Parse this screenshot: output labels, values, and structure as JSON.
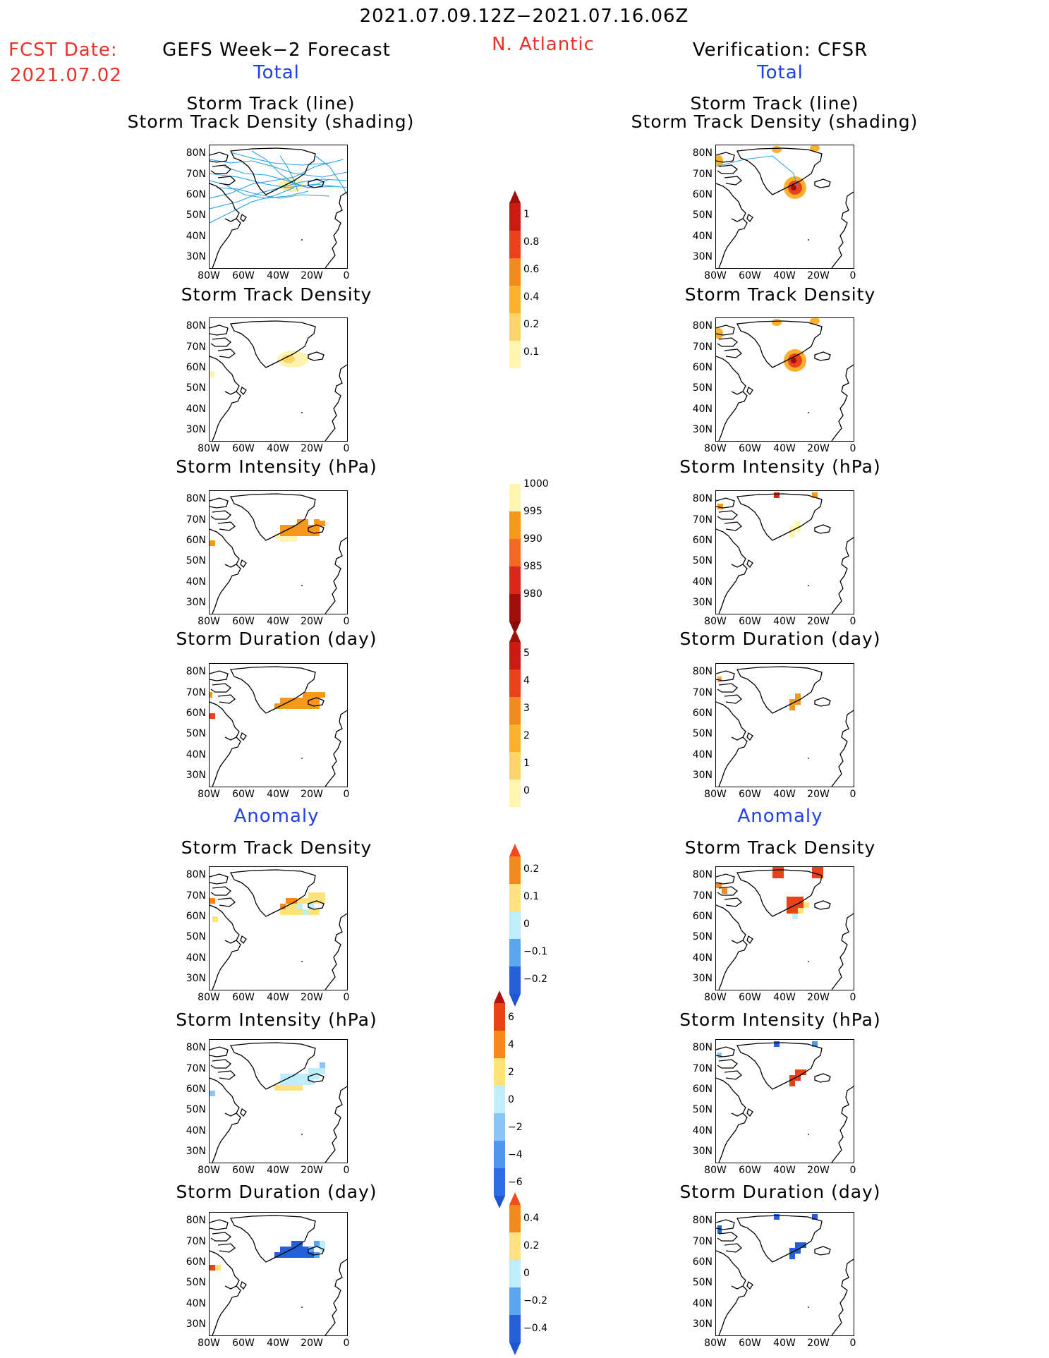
{
  "header": {
    "period": "2021.07.09.12Z−2021.07.16.06Z",
    "fcst_label": "FCST Date:",
    "fcst_date": "2021.07.02",
    "left_title": "GEFS Week−2 Forecast",
    "region": "N. Atlantic",
    "right_title": "Verification: CFSR",
    "total_label": "Total",
    "anomaly_label": "Anomaly"
  },
  "axes": {
    "y_ticks": [
      "80N",
      "70N",
      "60N",
      "50N",
      "40N",
      "30N"
    ],
    "x_ticks": [
      "80W",
      "60W",
      "40W",
      "20W",
      "0"
    ]
  },
  "panel_titles": {
    "track_line": "Storm Track (line)",
    "track_shading": "Storm Track Density (shading)",
    "density": "Storm Track Density",
    "intensity": "Storm Intensity (hPa)",
    "duration": "Storm Duration (day)"
  },
  "colorbars": {
    "density_total": {
      "labels": [
        "1",
        "0.8",
        "0.6",
        "0.4",
        "0.2",
        "0.1"
      ],
      "colors": [
        "#c81b12",
        "#e8421b",
        "#f7881d",
        "#fbb02e",
        "#fdd565",
        "#fef6b0"
      ],
      "top_color": "#a00f0a"
    },
    "intensity_total": {
      "labels": [
        "1000",
        "995",
        "990",
        "985",
        "980"
      ],
      "colors": [
        "#fef6b0",
        "#f7981d",
        "#f26a1d",
        "#d8281a",
        "#a00f0a"
      ],
      "bottom_color": "#8a0a08"
    },
    "duration_total": {
      "labels": [
        "5",
        "4",
        "3",
        "2",
        "1",
        "0"
      ],
      "colors": [
        "#c81b12",
        "#e8421b",
        "#f7881d",
        "#fbb02e",
        "#fdd565",
        "#fef6b0"
      ],
      "top_color": "#a00f0a"
    },
    "density_anom": {
      "labels": [
        "0.2",
        "0.1",
        "0",
        "−0.1",
        "−0.2"
      ],
      "colors": [
        "#f7881d",
        "#fde37a",
        "#bdeefa",
        "#5aa6f0",
        "#2560d8"
      ],
      "top_color": "#f24a1d",
      "bottom_color": "#1e55d0"
    },
    "intensity_anom": {
      "labels": [
        "6",
        "4",
        "2",
        "0",
        "−2",
        "−4",
        "−6"
      ],
      "colors": [
        "#e8421b",
        "#f7881d",
        "#fde37a",
        "#bdeefa",
        "#8ac6f5",
        "#4e98ec",
        "#2a6ee0"
      ],
      "top_color": "#b0130c",
      "bottom_color": "#1e55d0"
    },
    "duration_anom": {
      "labels": [
        "0.4",
        "0.2",
        "0",
        "−0.2",
        "−0.4"
      ],
      "colors": [
        "#f7881d",
        "#fde37a",
        "#bdeefa",
        "#5aa6f0",
        "#2560d8"
      ],
      "top_color": "#f24a1d",
      "bottom_color": "#1e55d0"
    }
  }
}
